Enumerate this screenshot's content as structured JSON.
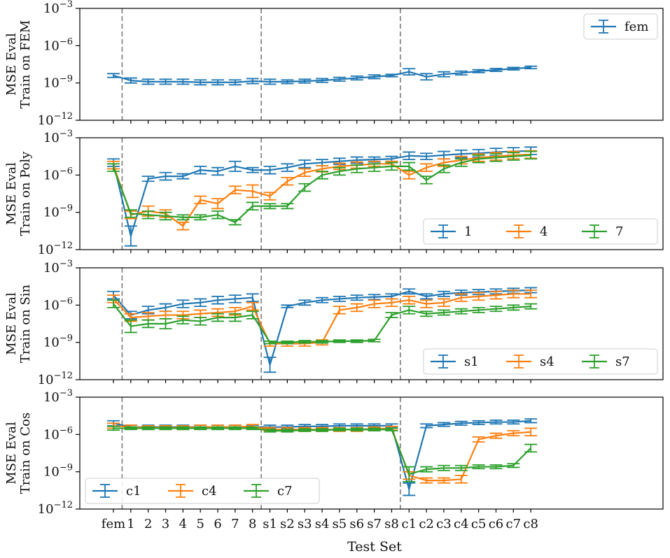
{
  "colors": {
    "blue": "#1f77b4",
    "orange": "#ff7f0e",
    "green": "#2ca02c",
    "divider": "#888888"
  },
  "chart_data": {
    "type": "line",
    "title": "",
    "xlabel": "Test Set",
    "y_scale": "log",
    "ylim_exp": [
      -12,
      -3
    ],
    "ytick_exp": [
      -12,
      -9,
      -6,
      -3
    ],
    "ytick_base": "10",
    "categories": [
      "fem",
      "1",
      "2",
      "3",
      "4",
      "5",
      "6",
      "7",
      "8",
      "s1",
      "s2",
      "s3",
      "s4",
      "s5",
      "s6",
      "s7",
      "s8",
      "c1",
      "c2",
      "c3",
      "c4",
      "c5",
      "c6",
      "c7",
      "c8"
    ],
    "dividers_after_index": [
      0,
      8,
      16
    ],
    "panels": [
      {
        "ylabel_line1": "MSE Eval",
        "ylabel_line2": "Train on FEM",
        "legend_position": "upper right",
        "legend_columns": 1,
        "series": [
          {
            "name": "fem",
            "color": "blue",
            "log10_values": [
              -8.4,
              -8.8,
              -8.9,
              -8.9,
              -8.9,
              -8.95,
              -8.95,
              -8.95,
              -8.85,
              -8.9,
              -8.9,
              -8.85,
              -8.8,
              -8.7,
              -8.6,
              -8.5,
              -8.4,
              -8.1,
              -8.5,
              -8.3,
              -8.2,
              -8.05,
              -7.95,
              -7.85,
              -7.75
            ],
            "log10_err": [
              0.15,
              0.2,
              0.2,
              0.2,
              0.2,
              0.2,
              0.2,
              0.2,
              0.2,
              0.2,
              0.15,
              0.15,
              0.15,
              0.15,
              0.15,
              0.15,
              0.1,
              0.25,
              0.25,
              0.2,
              0.15,
              0.12,
              0.12,
              0.1,
              0.1
            ]
          }
        ]
      },
      {
        "ylabel_line1": "MSE Eval",
        "ylabel_line2": "Train on Poly",
        "legend_position": "lower right",
        "legend_columns": 3,
        "series": [
          {
            "name": "1",
            "color": "blue",
            "log10_values": [
              -5.0,
              -10.9,
              -6.3,
              -6.1,
              -6.1,
              -5.6,
              -5.7,
              -5.3,
              -5.6,
              -5.6,
              -5.4,
              -5.1,
              -5.0,
              -4.9,
              -4.8,
              -4.75,
              -4.7,
              -4.45,
              -4.5,
              -4.4,
              -4.3,
              -4.25,
              -4.15,
              -4.1,
              -4.05
            ],
            "log10_err": [
              0.3,
              0.8,
              0.2,
              0.3,
              0.2,
              0.3,
              0.3,
              0.4,
              0.2,
              0.3,
              0.3,
              0.3,
              0.25,
              0.25,
              0.25,
              0.2,
              0.2,
              0.3,
              0.25,
              0.3,
              0.3,
              0.3,
              0.3,
              0.3,
              0.3
            ]
          },
          {
            "name": "4",
            "color": "orange",
            "log10_values": [
              -5.2,
              -9.2,
              -8.9,
              -9.1,
              -10.1,
              -8.0,
              -8.3,
              -7.2,
              -7.3,
              -7.7,
              -6.5,
              -5.8,
              -5.5,
              -5.3,
              -5.2,
              -5.1,
              -5.1,
              -6.0,
              -5.4,
              -5.0,
              -4.8,
              -4.6,
              -4.5,
              -4.4,
              -4.35
            ],
            "log10_err": [
              0.3,
              0.3,
              0.4,
              0.3,
              0.3,
              0.3,
              0.4,
              0.3,
              0.5,
              0.3,
              0.3,
              0.3,
              0.25,
              0.25,
              0.25,
              0.2,
              0.2,
              0.3,
              0.3,
              0.3,
              0.3,
              0.3,
              0.3,
              0.3,
              0.3
            ]
          },
          {
            "name": "7",
            "color": "green",
            "log10_values": [
              -5.4,
              -9.1,
              -9.2,
              -9.3,
              -9.4,
              -9.4,
              -9.2,
              -9.8,
              -8.5,
              -8.5,
              -8.5,
              -7.0,
              -6.0,
              -5.7,
              -5.5,
              -5.4,
              -5.3,
              -5.3,
              -6.4,
              -5.5,
              -5.0,
              -4.7,
              -4.6,
              -4.5,
              -4.4
            ],
            "log10_err": [
              0.3,
              0.3,
              0.3,
              0.3,
              0.2,
              0.2,
              0.3,
              0.2,
              0.3,
              0.2,
              0.2,
              0.3,
              0.3,
              0.3,
              0.3,
              0.3,
              0.3,
              0.3,
              0.3,
              0.3,
              0.3,
              0.3,
              0.3,
              0.3,
              0.3
            ]
          }
        ]
      },
      {
        "ylabel_line1": "MSE Eval",
        "ylabel_line2": "Train on Sin",
        "legend_position": "lower right",
        "legend_columns": 3,
        "series": [
          {
            "name": "s1",
            "color": "blue",
            "log10_values": [
              -5.2,
              -6.8,
              -6.4,
              -6.2,
              -5.9,
              -5.8,
              -5.6,
              -5.5,
              -5.4,
              -10.8,
              -6.1,
              -5.8,
              -5.6,
              -5.5,
              -5.4,
              -5.35,
              -5.3,
              -4.9,
              -5.3,
              -5.1,
              -5.0,
              -4.95,
              -4.9,
              -4.85,
              -4.8
            ],
            "log10_err": [
              0.3,
              0.3,
              0.3,
              0.3,
              0.3,
              0.3,
              0.3,
              0.3,
              0.3,
              0.6,
              0.1,
              0.2,
              0.2,
              0.2,
              0.2,
              0.2,
              0.2,
              0.2,
              0.2,
              0.2,
              0.2,
              0.2,
              0.2,
              0.2,
              0.2
            ]
          },
          {
            "name": "s4",
            "color": "orange",
            "log10_values": [
              -5.5,
              -7.0,
              -6.9,
              -6.8,
              -6.8,
              -6.7,
              -6.6,
              -6.5,
              -6.1,
              -9.1,
              -9.1,
              -9.1,
              -9.0,
              -6.4,
              -6.2,
              -5.9,
              -5.8,
              -5.6,
              -5.9,
              -5.8,
              -5.4,
              -5.3,
              -5.2,
              -5.1,
              -5.1
            ],
            "log10_err": [
              0.3,
              0.3,
              0.3,
              0.3,
              0.3,
              0.3,
              0.3,
              0.3,
              0.3,
              0.2,
              0.2,
              0.2,
              0.2,
              0.3,
              0.3,
              0.3,
              0.3,
              0.3,
              0.3,
              0.3,
              0.3,
              0.3,
              0.3,
              0.3,
              0.3
            ]
          },
          {
            "name": "s7",
            "color": "green",
            "log10_values": [
              -5.9,
              -7.7,
              -7.5,
              -7.5,
              -7.2,
              -7.3,
              -7.0,
              -7.0,
              -6.8,
              -9.0,
              -9.0,
              -8.95,
              -8.95,
              -8.9,
              -8.9,
              -8.85,
              -6.8,
              -6.4,
              -6.7,
              -6.6,
              -6.5,
              -6.4,
              -6.3,
              -6.2,
              -6.1
            ],
            "log10_err": [
              0.3,
              0.5,
              0.3,
              0.4,
              0.3,
              0.3,
              0.3,
              0.3,
              0.3,
              0.1,
              0.1,
              0.1,
              0.1,
              0.1,
              0.1,
              0.1,
              0.2,
              0.3,
              0.2,
              0.2,
              0.2,
              0.2,
              0.2,
              0.2,
              0.2
            ]
          }
        ]
      },
      {
        "ylabel_line1": "MSE Eval",
        "ylabel_line2": "Train on Cos",
        "legend_position": "lower left",
        "legend_columns": 3,
        "series": [
          {
            "name": "c1",
            "color": "blue",
            "log10_values": [
              -5.1,
              -5.4,
              -5.4,
              -5.4,
              -5.4,
              -5.4,
              -5.4,
              -5.4,
              -5.4,
              -5.4,
              -5.4,
              -5.35,
              -5.35,
              -5.3,
              -5.3,
              -5.3,
              -5.3,
              -10.4,
              -5.3,
              -5.2,
              -5.1,
              -5.05,
              -5.0,
              -5.0,
              -4.9
            ],
            "log10_err": [
              0.2,
              0.15,
              0.15,
              0.15,
              0.15,
              0.15,
              0.15,
              0.15,
              0.15,
              0.15,
              0.15,
              0.15,
              0.15,
              0.15,
              0.15,
              0.15,
              0.15,
              0.5,
              0.15,
              0.15,
              0.15,
              0.15,
              0.15,
              0.15,
              0.15
            ]
          },
          {
            "name": "c4",
            "color": "orange",
            "log10_values": [
              -5.3,
              -5.4,
              -5.45,
              -5.45,
              -5.45,
              -5.4,
              -5.4,
              -5.4,
              -5.35,
              -5.6,
              -5.6,
              -5.6,
              -5.6,
              -5.6,
              -5.6,
              -5.55,
              -5.5,
              -9.3,
              -9.7,
              -9.7,
              -9.6,
              -6.4,
              -6.1,
              -5.9,
              -5.8
            ],
            "log10_err": [
              0.2,
              0.15,
              0.15,
              0.15,
              0.15,
              0.15,
              0.15,
              0.15,
              0.15,
              0.15,
              0.15,
              0.15,
              0.15,
              0.15,
              0.15,
              0.15,
              0.15,
              0.3,
              0.2,
              0.2,
              0.3,
              0.2,
              0.2,
              0.2,
              0.3
            ]
          },
          {
            "name": "c7",
            "color": "green",
            "log10_values": [
              -5.5,
              -5.5,
              -5.5,
              -5.5,
              -5.5,
              -5.5,
              -5.5,
              -5.5,
              -5.5,
              -5.7,
              -5.7,
              -5.65,
              -5.65,
              -5.6,
              -5.6,
              -5.6,
              -5.6,
              -9.2,
              -8.8,
              -8.7,
              -8.7,
              -8.6,
              -8.6,
              -8.5,
              -7.1
            ],
            "log10_err": [
              0.15,
              0.1,
              0.1,
              0.1,
              0.1,
              0.1,
              0.1,
              0.1,
              0.1,
              0.1,
              0.1,
              0.1,
              0.1,
              0.1,
              0.1,
              0.1,
              0.1,
              0.6,
              0.2,
              0.2,
              0.2,
              0.15,
              0.15,
              0.15,
              0.3
            ]
          }
        ]
      }
    ]
  }
}
